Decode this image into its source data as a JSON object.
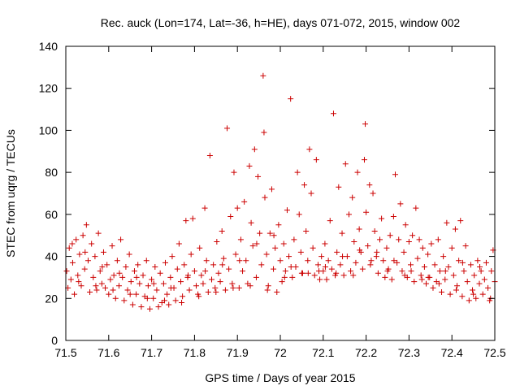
{
  "chart_data": {
    "type": "scatter",
    "title": "Rec. auck (Lon=174, Lat=-36, h=HE), days 071-072, 2015, window 002",
    "xlabel": "GPS time / Days of year 2015",
    "ylabel": "STEC from uqrg / TECUs",
    "xlim": [
      71.5,
      72.5
    ],
    "ylim": [
      0,
      140
    ],
    "xticks": [
      71.5,
      71.6,
      71.7,
      71.8,
      71.9,
      72,
      72.1,
      72.2,
      72.3,
      72.4,
      72.5
    ],
    "xtick_labels": [
      "71.5",
      "71.6",
      "71.7",
      "71.8",
      "71.9",
      "72",
      "72.1",
      "72.2",
      "72.3",
      "72.4",
      "72.5"
    ],
    "yticks": [
      0,
      20,
      40,
      60,
      80,
      100,
      120,
      140
    ],
    "ytick_labels": [
      "0",
      "20",
      "40",
      "60",
      "80",
      "100",
      "120",
      "140"
    ],
    "marker": "+",
    "color": "#cc0000",
    "grid": false,
    "points": [
      [
        71.502,
        33
      ],
      [
        71.505,
        25
      ],
      [
        71.508,
        44
      ],
      [
        71.512,
        29
      ],
      [
        71.516,
        37
      ],
      [
        71.52,
        22
      ],
      [
        71.524,
        48
      ],
      [
        71.528,
        31
      ],
      [
        71.532,
        41
      ],
      [
        71.536,
        26
      ],
      [
        71.54,
        50
      ],
      [
        71.544,
        34
      ],
      [
        71.548,
        55
      ],
      [
        71.552,
        38
      ],
      [
        71.556,
        23
      ],
      [
        71.56,
        46
      ],
      [
        71.564,
        30
      ],
      [
        71.568,
        40
      ],
      [
        71.572,
        24
      ],
      [
        71.576,
        51
      ],
      [
        71.58,
        33
      ],
      [
        71.584,
        27
      ],
      [
        71.588,
        42
      ],
      [
        71.592,
        25
      ],
      [
        71.596,
        36
      ],
      [
        71.6,
        22
      ],
      [
        71.604,
        29
      ],
      [
        71.608,
        45
      ],
      [
        71.612,
        31
      ],
      [
        71.616,
        20
      ],
      [
        71.62,
        38
      ],
      [
        71.624,
        26
      ],
      [
        71.628,
        48
      ],
      [
        71.632,
        30
      ],
      [
        71.636,
        19
      ],
      [
        71.64,
        35
      ],
      [
        71.644,
        24
      ],
      [
        71.648,
        41
      ],
      [
        71.652,
        28
      ],
      [
        71.656,
        17
      ],
      [
        71.66,
        33
      ],
      [
        71.664,
        22
      ],
      [
        71.668,
        36
      ],
      [
        71.672,
        27
      ],
      [
        71.676,
        16
      ],
      [
        71.68,
        31
      ],
      [
        71.684,
        21
      ],
      [
        71.688,
        38
      ],
      [
        71.692,
        26
      ],
      [
        71.696,
        15
      ],
      [
        71.7,
        29
      ],
      [
        71.704,
        20
      ],
      [
        71.708,
        35
      ],
      [
        71.712,
        24
      ],
      [
        71.716,
        16
      ],
      [
        71.72,
        32
      ],
      [
        71.724,
        18
      ],
      [
        71.728,
        27
      ],
      [
        71.732,
        37
      ],
      [
        71.736,
        22
      ],
      [
        71.74,
        17
      ],
      [
        71.744,
        30
      ],
      [
        71.748,
        40
      ],
      [
        71.752,
        25
      ],
      [
        71.756,
        19
      ],
      [
        71.76,
        34
      ],
      [
        71.764,
        46
      ],
      [
        71.768,
        28
      ],
      [
        71.772,
        21
      ],
      [
        71.776,
        36
      ],
      [
        71.78,
        57
      ],
      [
        71.784,
        30
      ],
      [
        71.788,
        24
      ],
      [
        71.792,
        41
      ],
      [
        71.796,
        58
      ],
      [
        71.8,
        33
      ],
      [
        71.804,
        26
      ],
      [
        71.808,
        22
      ],
      [
        71.812,
        44
      ],
      [
        71.816,
        31
      ],
      [
        71.82,
        27
      ],
      [
        71.824,
        63
      ],
      [
        71.828,
        38
      ],
      [
        71.832,
        23
      ],
      [
        71.836,
        88
      ],
      [
        71.84,
        29
      ],
      [
        71.844,
        36
      ],
      [
        71.848,
        25
      ],
      [
        71.852,
        47
      ],
      [
        71.856,
        32
      ],
      [
        71.86,
        28
      ],
      [
        71.864,
        52
      ],
      [
        71.868,
        39
      ],
      [
        71.872,
        24
      ],
      [
        71.876,
        101
      ],
      [
        71.88,
        34
      ],
      [
        71.884,
        59
      ],
      [
        71.888,
        27
      ],
      [
        71.892,
        80
      ],
      [
        71.896,
        41
      ],
      [
        71.9,
        63
      ],
      [
        71.904,
        25
      ],
      [
        71.908,
        48
      ],
      [
        71.912,
        33
      ],
      [
        71.916,
        66
      ],
      [
        71.92,
        38
      ],
      [
        71.924,
        27
      ],
      [
        71.928,
        83
      ],
      [
        71.932,
        56
      ],
      [
        71.936,
        45
      ],
      [
        71.94,
        91
      ],
      [
        71.944,
        30
      ],
      [
        71.948,
        78
      ],
      [
        71.952,
        51
      ],
      [
        71.956,
        36
      ],
      [
        71.96,
        126
      ],
      [
        71.962,
        99
      ],
      [
        71.964,
        68
      ],
      [
        71.968,
        41
      ],
      [
        71.972,
        26
      ],
      [
        71.976,
        51
      ],
      [
        71.98,
        72
      ],
      [
        71.984,
        34
      ],
      [
        71.988,
        44
      ],
      [
        71.992,
        23
      ],
      [
        71.996,
        55
      ],
      [
        72,
        38
      ],
      [
        72.004,
        28
      ],
      [
        72.008,
        46
      ],
      [
        72.012,
        33
      ],
      [
        72.016,
        62
      ],
      [
        72.02,
        40
      ],
      [
        72.024,
        115
      ],
      [
        72.028,
        30
      ],
      [
        72.032,
        48
      ],
      [
        72.036,
        35
      ],
      [
        72.04,
        80
      ],
      [
        72.044,
        60
      ],
      [
        72.048,
        42
      ],
      [
        72.052,
        32
      ],
      [
        72.056,
        74
      ],
      [
        72.06,
        52
      ],
      [
        72.064,
        38
      ],
      [
        72.068,
        91
      ],
      [
        72.072,
        70
      ],
      [
        72.076,
        44
      ],
      [
        72.08,
        31
      ],
      [
        72.084,
        86
      ],
      [
        72.088,
        36
      ],
      [
        72.092,
        29
      ],
      [
        72.096,
        40
      ],
      [
        72.1,
        33
      ],
      [
        72.104,
        46
      ],
      [
        72.108,
        29
      ],
      [
        72.112,
        38
      ],
      [
        72.116,
        57
      ],
      [
        72.12,
        34
      ],
      [
        72.124,
        108
      ],
      [
        72.128,
        31
      ],
      [
        72.132,
        42
      ],
      [
        72.136,
        73
      ],
      [
        72.14,
        36
      ],
      [
        72.144,
        51
      ],
      [
        72.148,
        31
      ],
      [
        72.152,
        84
      ],
      [
        72.156,
        40
      ],
      [
        72.16,
        60
      ],
      [
        72.164,
        33
      ],
      [
        72.168,
        68
      ],
      [
        72.172,
        47
      ],
      [
        72.176,
        37
      ],
      [
        72.18,
        80
      ],
      [
        72.184,
        53
      ],
      [
        72.188,
        42
      ],
      [
        72.192,
        34
      ],
      [
        72.196,
        86
      ],
      [
        72.198,
        103
      ],
      [
        72.2,
        61
      ],
      [
        72.204,
        45
      ],
      [
        72.208,
        74
      ],
      [
        72.212,
        38
      ],
      [
        72.216,
        70
      ],
      [
        72.22,
        52
      ],
      [
        72.224,
        40
      ],
      [
        72.228,
        32
      ],
      [
        72.232,
        48
      ],
      [
        72.236,
        58
      ],
      [
        72.24,
        38
      ],
      [
        72.244,
        30
      ],
      [
        72.248,
        44
      ],
      [
        72.252,
        34
      ],
      [
        72.256,
        50
      ],
      [
        72.26,
        29
      ],
      [
        72.264,
        59
      ],
      [
        72.268,
        79
      ],
      [
        72.272,
        37
      ],
      [
        72.276,
        48
      ],
      [
        72.28,
        65
      ],
      [
        72.284,
        33
      ],
      [
        72.288,
        42
      ],
      [
        72.292,
        55
      ],
      [
        72.296,
        30
      ],
      [
        72.3,
        47
      ],
      [
        72.304,
        36
      ],
      [
        72.308,
        50
      ],
      [
        72.312,
        28
      ],
      [
        72.316,
        63
      ],
      [
        72.32,
        39
      ],
      [
        72.324,
        48
      ],
      [
        72.328,
        31
      ],
      [
        72.332,
        44
      ],
      [
        72.336,
        35
      ],
      [
        72.34,
        27
      ],
      [
        72.344,
        41
      ],
      [
        72.348,
        30
      ],
      [
        72.352,
        46
      ],
      [
        72.356,
        25
      ],
      [
        72.36,
        36
      ],
      [
        72.364,
        28
      ],
      [
        72.368,
        48
      ],
      [
        72.372,
        33
      ],
      [
        72.376,
        23
      ],
      [
        72.38,
        40
      ],
      [
        72.384,
        29
      ],
      [
        72.388,
        56
      ],
      [
        72.392,
        35
      ],
      [
        72.396,
        22
      ],
      [
        72.4,
        44
      ],
      [
        72.404,
        31
      ],
      [
        72.408,
        53
      ],
      [
        72.412,
        26
      ],
      [
        72.416,
        38
      ],
      [
        72.42,
        57
      ],
      [
        72.424,
        21
      ],
      [
        72.428,
        33
      ],
      [
        72.432,
        45
      ],
      [
        72.436,
        28
      ],
      [
        72.44,
        19
      ],
      [
        72.444,
        36
      ],
      [
        72.448,
        24
      ],
      [
        72.452,
        31
      ],
      [
        72.456,
        20
      ],
      [
        72.46,
        38
      ],
      [
        72.464,
        27
      ],
      [
        72.468,
        33
      ],
      [
        72.472,
        22
      ],
      [
        72.476,
        29
      ],
      [
        72.48,
        37
      ],
      [
        72.484,
        25
      ],
      [
        72.488,
        19
      ],
      [
        72.492,
        33
      ],
      [
        72.496,
        43
      ],
      [
        72.5,
        28
      ],
      [
        71.515,
        46
      ],
      [
        71.545,
        42
      ],
      [
        71.585,
        35
      ],
      [
        71.625,
        32
      ],
      [
        71.665,
        30
      ],
      [
        71.705,
        27
      ],
      [
        71.745,
        25
      ],
      [
        71.785,
        31
      ],
      [
        71.825,
        33
      ],
      [
        71.865,
        36
      ],
      [
        71.905,
        38
      ],
      [
        71.945,
        46
      ],
      [
        71.985,
        50
      ],
      [
        72.025,
        35
      ],
      [
        72.065,
        32
      ],
      [
        72.105,
        35
      ],
      [
        72.145,
        40
      ],
      [
        72.185,
        43
      ],
      [
        72.225,
        42
      ],
      [
        72.265,
        38
      ],
      [
        72.305,
        33
      ],
      [
        72.345,
        30
      ],
      [
        72.385,
        33
      ],
      [
        72.425,
        37
      ],
      [
        72.465,
        35
      ],
      [
        71.53,
        28
      ],
      [
        71.57,
        26
      ],
      [
        71.61,
        24
      ],
      [
        71.65,
        22
      ],
      [
        71.69,
        20
      ],
      [
        71.73,
        19
      ],
      [
        71.77,
        18
      ],
      [
        71.81,
        21
      ],
      [
        71.85,
        23
      ],
      [
        71.89,
        25
      ],
      [
        71.93,
        26
      ],
      [
        71.97,
        24
      ],
      [
        72.01,
        30
      ],
      [
        72.05,
        32
      ],
      [
        72.09,
        33
      ],
      [
        72.13,
        32
      ],
      [
        72.17,
        31
      ],
      [
        72.21,
        36
      ],
      [
        72.25,
        33
      ],
      [
        72.29,
        31
      ],
      [
        72.33,
        29
      ],
      [
        72.37,
        27
      ],
      [
        72.41,
        24
      ],
      [
        72.45,
        22
      ],
      [
        72.49,
        20
      ]
    ]
  }
}
